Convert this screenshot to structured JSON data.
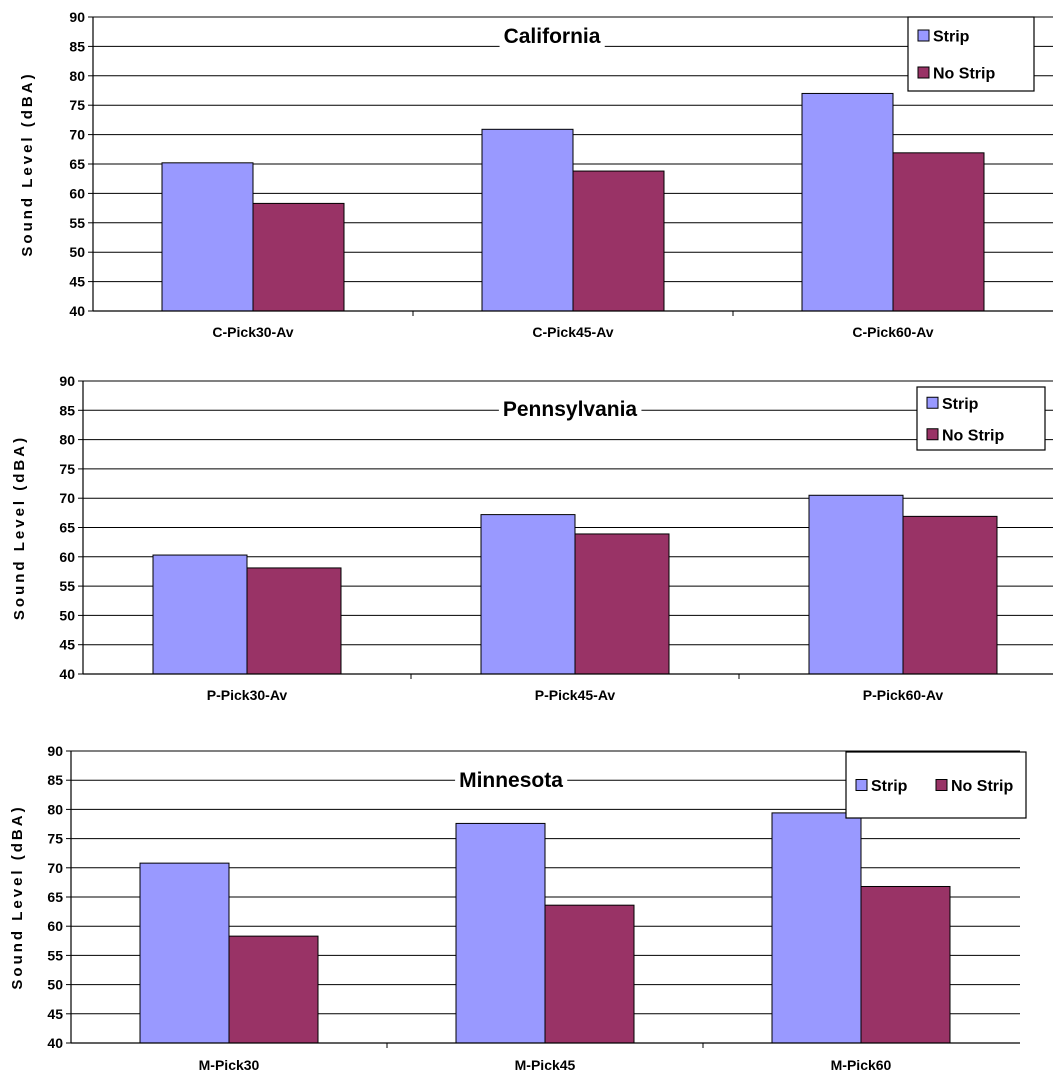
{
  "colors": {
    "strip": "#9999ff",
    "no_strip": "#993366",
    "grid": "#000000",
    "background": "#ffffff"
  },
  "chart_data": [
    {
      "type": "bar",
      "title": "California",
      "ylabel": "Sound Level (dBA)",
      "xlabel": "",
      "ylim": [
        40,
        90
      ],
      "yticks": [
        40,
        45,
        50,
        55,
        60,
        65,
        70,
        75,
        80,
        85,
        90
      ],
      "categories": [
        "C-Pick30-Av",
        "C-Pick45-Av",
        "C-Pick60-Av"
      ],
      "series": [
        {
          "name": "Strip",
          "values": [
            65.2,
            70.9,
            77.0
          ]
        },
        {
          "name": "No Strip",
          "values": [
            58.3,
            63.8,
            66.9
          ]
        }
      ],
      "grid": true,
      "legend": "top-right, vertical"
    },
    {
      "type": "bar",
      "title": "Pennsylvania",
      "ylabel": "Sound Level (dBA)",
      "xlabel": "",
      "ylim": [
        40,
        90
      ],
      "yticks": [
        40,
        45,
        50,
        55,
        60,
        65,
        70,
        75,
        80,
        85,
        90
      ],
      "categories": [
        "P-Pick30-Av",
        "P-Pick45-Av",
        "P-Pick60-Av"
      ],
      "series": [
        {
          "name": "Strip",
          "values": [
            60.3,
            67.2,
            70.5
          ]
        },
        {
          "name": "No Strip",
          "values": [
            58.1,
            63.9,
            66.9
          ]
        }
      ],
      "grid": true,
      "legend": "top-right, vertical"
    },
    {
      "type": "bar",
      "title": "Minnesota",
      "ylabel": "Sound Level (dBA)",
      "xlabel": "",
      "ylim": [
        40,
        90
      ],
      "yticks": [
        40,
        45,
        50,
        55,
        60,
        65,
        70,
        75,
        80,
        85,
        90
      ],
      "categories": [
        "M-Pick30",
        "M-Pick45",
        "M-Pick60"
      ],
      "series": [
        {
          "name": "Strip",
          "values": [
            70.8,
            77.6,
            79.4
          ]
        },
        {
          "name": "No Strip",
          "values": [
            58.3,
            63.6,
            66.8
          ]
        }
      ],
      "grid": true,
      "legend": "top-right, horizontal"
    }
  ]
}
